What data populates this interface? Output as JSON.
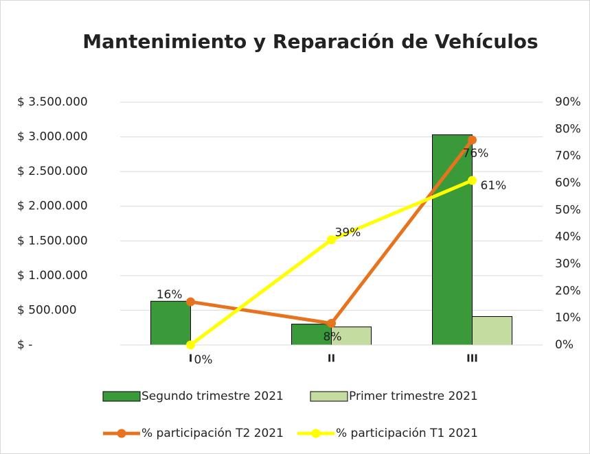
{
  "chart_data": {
    "type": "bar_line",
    "title": "Mantenimiento y Reparación de Vehículos",
    "categories": [
      "I",
      "II",
      "III"
    ],
    "series": [
      {
        "name": "Segundo trimestre 2021",
        "type": "bar",
        "color": "#3a9a3a",
        "values": [
          630000,
          300000,
          3030000
        ]
      },
      {
        "name": "Primer trimestre 2021",
        "type": "bar",
        "color": "#c5dca0",
        "values": [
          0,
          260000,
          410000
        ]
      },
      {
        "name": "% participación T2 2021",
        "type": "line",
        "axis": "y2",
        "color": "#e8731f",
        "values": [
          16,
          8,
          76
        ],
        "value_labels": [
          "16%",
          "8%",
          "76%"
        ]
      },
      {
        "name": "% participación T1 2021",
        "type": "line",
        "axis": "y2",
        "color": "#ffff00",
        "values": [
          0,
          39,
          61
        ],
        "value_labels": [
          "0%",
          "39%",
          "61%"
        ]
      }
    ],
    "ylim": [
      0,
      3500000
    ],
    "yticks": [
      {
        "value": 0,
        "label": "$ -"
      },
      {
        "value": 500000,
        "label": "$ 500.000"
      },
      {
        "value": 1000000,
        "label": "$ 1.000.000"
      },
      {
        "value": 1500000,
        "label": "$ 1.500.000"
      },
      {
        "value": 2000000,
        "label": "$ 2.000.000"
      },
      {
        "value": 2500000,
        "label": "$ 2.500.000"
      },
      {
        "value": 3000000,
        "label": "$ 3.000.000"
      },
      {
        "value": 3500000,
        "label": "$ 3.500.000"
      }
    ],
    "y2lim": [
      0,
      90
    ],
    "y2ticks": [
      {
        "value": 0,
        "label": "0%"
      },
      {
        "value": 10,
        "label": "10%"
      },
      {
        "value": 20,
        "label": "20%"
      },
      {
        "value": 30,
        "label": "30%"
      },
      {
        "value": 40,
        "label": "40%"
      },
      {
        "value": 50,
        "label": "50%"
      },
      {
        "value": 60,
        "label": "60%"
      },
      {
        "value": 70,
        "label": "70%"
      },
      {
        "value": 80,
        "label": "80%"
      },
      {
        "value": 90,
        "label": "90%"
      }
    ],
    "grid": true
  }
}
